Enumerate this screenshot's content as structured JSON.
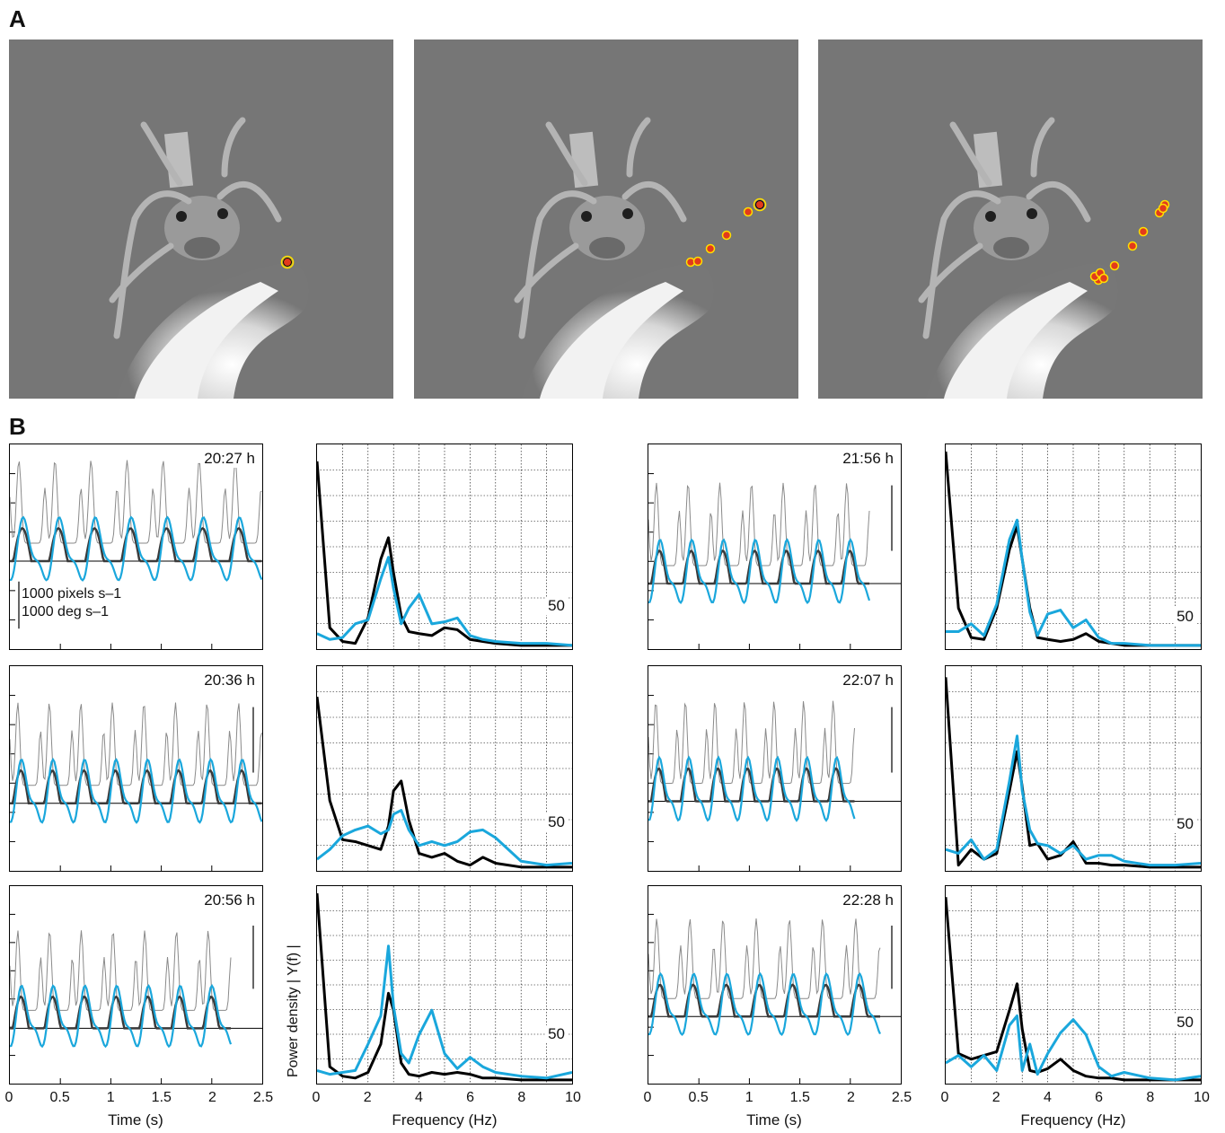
{
  "panel_labels": {
    "a": "A",
    "b": "B"
  },
  "photos": [
    {
      "track_dots": 1
    },
    {
      "track_dots": 6
    },
    {
      "track_dots": 10
    }
  ],
  "colors": {
    "black": "#000000",
    "blue": "#1aa7dc",
    "dark_gray": "#3a3a3a",
    "gray": "#8a8a8a",
    "marker": "#e23a1c",
    "marker_ring": "#ffe000"
  },
  "scale": {
    "pixels": "1000 pixels s–1",
    "deg": "1000 deg s–1"
  },
  "fifty_label": "50",
  "axes": {
    "time_ticks": [
      "0",
      "0.5",
      "1",
      "1.5",
      "2",
      "2.5"
    ],
    "time_title": "Time (s)",
    "freq_ticks": [
      "0",
      "2",
      "4",
      "6",
      "8",
      "10"
    ],
    "freq_title": "Frequency (Hz)",
    "freq_ylabel": "Power density | Y(f) |"
  },
  "chart_data": [
    {
      "type": "line",
      "time_label": "20:27 h",
      "xlim": [
        0,
        2.5
      ]
    },
    {
      "type": "line",
      "xlim": [
        0,
        10
      ],
      "series": [
        {
          "color": "black",
          "x": [
            0,
            0.5,
            1,
            1.5,
            2,
            2.5,
            2.8,
            3,
            3.3,
            3.6,
            4,
            4.5,
            5,
            5.5,
            6,
            6.5,
            7,
            8,
            9,
            10
          ],
          "y": [
            0.95,
            0.1,
            0.03,
            0.02,
            0.15,
            0.45,
            0.56,
            0.38,
            0.16,
            0.08,
            0.07,
            0.06,
            0.1,
            0.09,
            0.04,
            0.03,
            0.02,
            0.01,
            0.01,
            0.01
          ]
        },
        {
          "color": "blue",
          "x": [
            0,
            0.5,
            1,
            1.5,
            2,
            2.5,
            2.8,
            3,
            3.3,
            3.6,
            4,
            4.5,
            5,
            5.5,
            6,
            6.5,
            7,
            8,
            9,
            10
          ],
          "y": [
            0.07,
            0.04,
            0.05,
            0.12,
            0.14,
            0.35,
            0.46,
            0.3,
            0.12,
            0.2,
            0.27,
            0.12,
            0.13,
            0.15,
            0.06,
            0.04,
            0.03,
            0.02,
            0.02,
            0.01
          ]
        }
      ]
    },
    {
      "type": "line",
      "time_label": "20:36 h",
      "xlim": [
        0,
        2.5
      ]
    },
    {
      "type": "line",
      "xlim": [
        0,
        10
      ],
      "series": [
        {
          "color": "black",
          "x": [
            0,
            0.5,
            1,
            1.5,
            2,
            2.5,
            2.8,
            3,
            3.3,
            3.6,
            4,
            4.5,
            5,
            5.5,
            6,
            6.5,
            7,
            8,
            9,
            10
          ],
          "y": [
            0.88,
            0.35,
            0.15,
            0.14,
            0.12,
            0.1,
            0.22,
            0.4,
            0.45,
            0.25,
            0.08,
            0.06,
            0.08,
            0.04,
            0.02,
            0.06,
            0.03,
            0.01,
            0.01,
            0.01
          ]
        },
        {
          "color": "blue",
          "x": [
            0,
            0.5,
            1,
            1.5,
            2,
            2.5,
            2.8,
            3,
            3.3,
            3.6,
            4,
            4.5,
            5,
            5.5,
            6,
            6.5,
            7,
            8,
            9,
            10
          ],
          "y": [
            0.05,
            0.1,
            0.17,
            0.2,
            0.22,
            0.18,
            0.2,
            0.28,
            0.3,
            0.2,
            0.12,
            0.14,
            0.12,
            0.14,
            0.19,
            0.2,
            0.16,
            0.04,
            0.02,
            0.03
          ]
        }
      ]
    },
    {
      "type": "line",
      "time_label": "20:56 h",
      "xlim": [
        0,
        2.5
      ]
    },
    {
      "type": "line",
      "xlim": [
        0,
        10
      ],
      "series": [
        {
          "color": "black",
          "x": [
            0,
            0.5,
            1,
            1.5,
            2,
            2.5,
            2.8,
            3,
            3.3,
            3.6,
            4,
            4.5,
            5,
            5.5,
            6,
            6.5,
            7,
            8,
            9,
            10
          ],
          "y": [
            1.0,
            0.08,
            0.03,
            0.02,
            0.05,
            0.2,
            0.47,
            0.38,
            0.1,
            0.04,
            0.03,
            0.05,
            0.04,
            0.05,
            0.04,
            0.02,
            0.02,
            0.01,
            0.01,
            0.01
          ]
        },
        {
          "color": "blue",
          "x": [
            0,
            0.5,
            1,
            1.5,
            2,
            2.5,
            2.8,
            3,
            3.3,
            3.6,
            4,
            4.5,
            5,
            5.5,
            6,
            6.5,
            7,
            8,
            9,
            10
          ],
          "y": [
            0.06,
            0.04,
            0.05,
            0.06,
            0.2,
            0.35,
            0.72,
            0.4,
            0.15,
            0.1,
            0.25,
            0.38,
            0.15,
            0.07,
            0.13,
            0.08,
            0.05,
            0.03,
            0.02,
            0.05
          ]
        }
      ]
    },
    {
      "type": "line",
      "time_label": "21:56 h",
      "xlim": [
        0,
        2.5
      ]
    },
    {
      "type": "line",
      "xlim": [
        0,
        10
      ],
      "series": [
        {
          "color": "black",
          "x": [
            0,
            0.5,
            1,
            1.5,
            2,
            2.5,
            2.8,
            3,
            3.3,
            3.6,
            4,
            4.5,
            5,
            5.5,
            6,
            6.5,
            7,
            8,
            9,
            10
          ],
          "y": [
            1.0,
            0.2,
            0.05,
            0.04,
            0.2,
            0.5,
            0.62,
            0.45,
            0.2,
            0.05,
            0.04,
            0.03,
            0.04,
            0.07,
            0.03,
            0.02,
            0.01,
            0.01,
            0.01,
            0.01
          ]
        },
        {
          "color": "blue",
          "x": [
            0,
            0.5,
            1,
            1.5,
            2,
            2.5,
            2.8,
            3,
            3.3,
            3.6,
            4,
            4.5,
            5,
            5.5,
            6,
            6.5,
            7,
            8,
            9,
            10
          ],
          "y": [
            0.08,
            0.08,
            0.12,
            0.06,
            0.22,
            0.55,
            0.65,
            0.45,
            0.18,
            0.06,
            0.17,
            0.19,
            0.1,
            0.14,
            0.05,
            0.02,
            0.02,
            0.01,
            0.01,
            0.01
          ]
        }
      ]
    },
    {
      "type": "line",
      "time_label": "22:07 h",
      "xlim": [
        0,
        2.5
      ]
    },
    {
      "type": "line",
      "xlim": [
        0,
        10
      ],
      "series": [
        {
          "color": "black",
          "x": [
            0,
            0.5,
            1,
            1.5,
            2,
            2.5,
            2.8,
            3,
            3.3,
            3.6,
            4,
            4.5,
            5,
            5.5,
            6,
            6.5,
            7,
            8,
            9,
            10
          ],
          "y": [
            0.98,
            0.02,
            0.1,
            0.05,
            0.08,
            0.4,
            0.6,
            0.42,
            0.12,
            0.13,
            0.05,
            0.07,
            0.14,
            0.03,
            0.03,
            0.02,
            0.02,
            0.01,
            0.01,
            0.01
          ]
        },
        {
          "color": "blue",
          "x": [
            0,
            0.5,
            1,
            1.5,
            2,
            2.5,
            2.8,
            3,
            3.3,
            3.6,
            4,
            4.5,
            5,
            5.5,
            6,
            6.5,
            7,
            8,
            9,
            10
          ],
          "y": [
            0.1,
            0.08,
            0.15,
            0.05,
            0.1,
            0.45,
            0.68,
            0.4,
            0.2,
            0.13,
            0.12,
            0.08,
            0.12,
            0.05,
            0.07,
            0.07,
            0.04,
            0.02,
            0.02,
            0.03
          ]
        }
      ]
    },
    {
      "type": "line",
      "time_label": "22:28 h",
      "xlim": [
        0,
        2.5
      ]
    },
    {
      "type": "line",
      "xlim": [
        0,
        10
      ],
      "series": [
        {
          "color": "black",
          "x": [
            0,
            0.5,
            1,
            1.5,
            2,
            2.5,
            2.8,
            3,
            3.3,
            3.6,
            4,
            4.5,
            5,
            5.5,
            6,
            6.5,
            7,
            8,
            9,
            10
          ],
          "y": [
            0.98,
            0.15,
            0.12,
            0.14,
            0.16,
            0.38,
            0.52,
            0.28,
            0.06,
            0.05,
            0.07,
            0.12,
            0.06,
            0.03,
            0.02,
            0.02,
            0.01,
            0.01,
            0.01,
            0.01
          ]
        },
        {
          "color": "blue",
          "x": [
            0,
            0.5,
            1,
            1.5,
            2,
            2.5,
            2.8,
            3,
            3.3,
            3.6,
            4,
            4.5,
            5,
            5.5,
            6,
            6.5,
            7,
            8,
            9,
            10
          ],
          "y": [
            0.1,
            0.14,
            0.08,
            0.14,
            0.06,
            0.3,
            0.35,
            0.06,
            0.2,
            0.04,
            0.15,
            0.26,
            0.33,
            0.25,
            0.08,
            0.03,
            0.05,
            0.02,
            0.01,
            0.03
          ]
        }
      ]
    }
  ]
}
